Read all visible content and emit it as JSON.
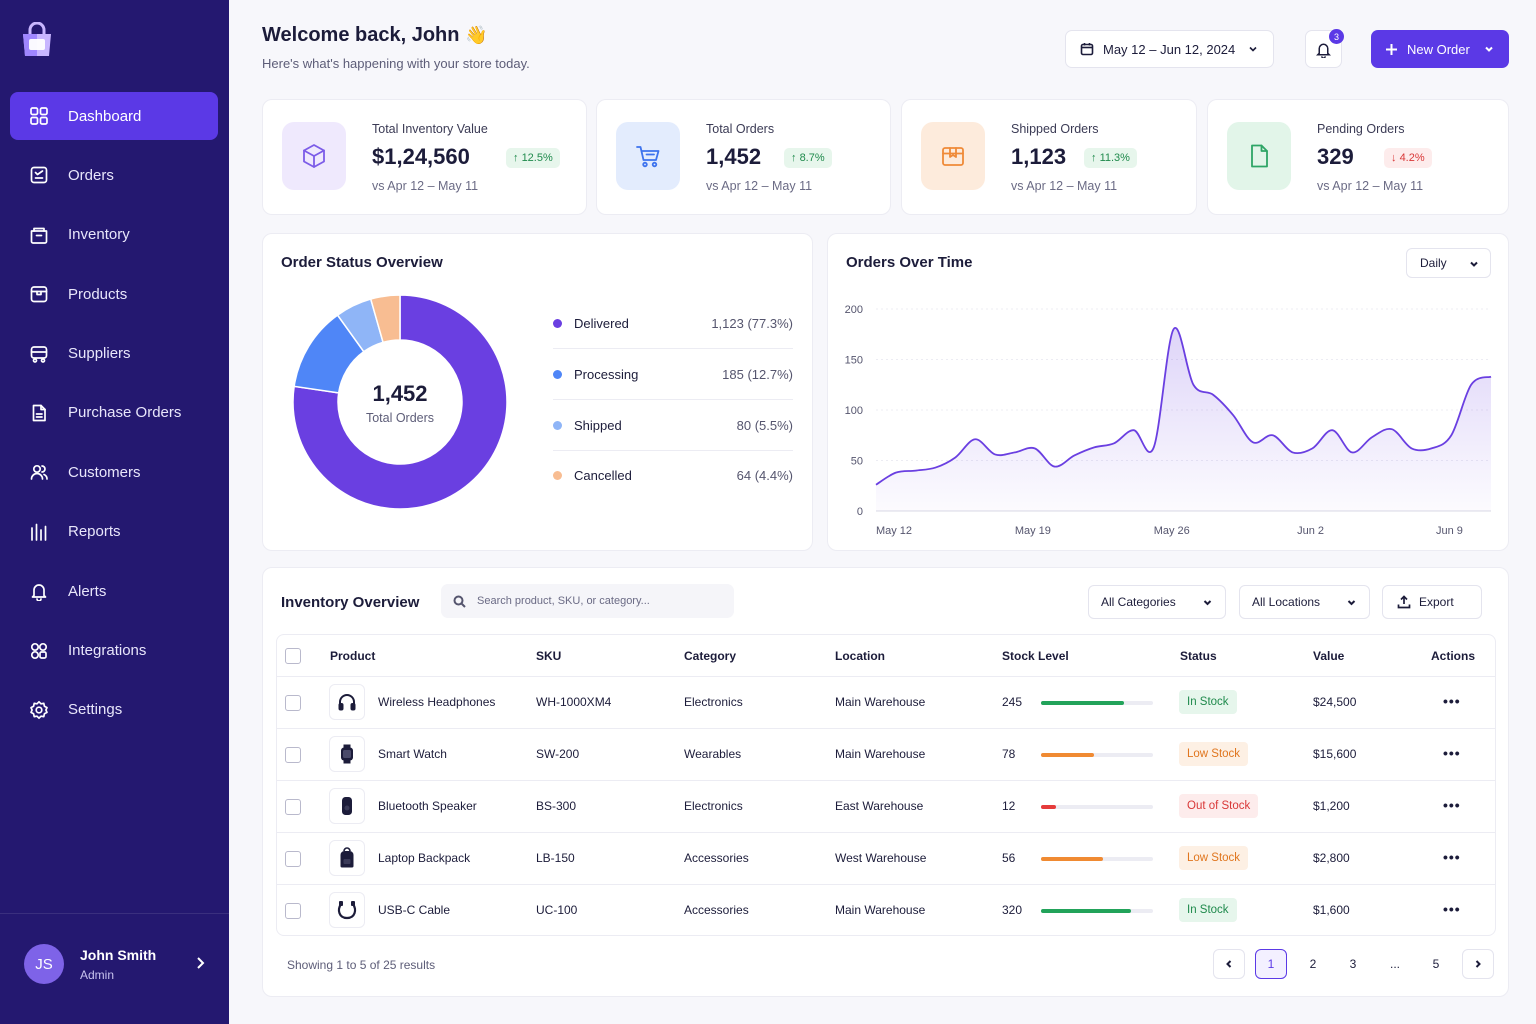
{
  "sidebar": {
    "items": [
      {
        "label": "Dashboard",
        "icon": "grid-icon"
      },
      {
        "label": "Orders",
        "icon": "orders-icon"
      },
      {
        "label": "Inventory",
        "icon": "inventory-icon"
      },
      {
        "label": "Products",
        "icon": "box-icon"
      },
      {
        "label": "Suppliers",
        "icon": "truck-icon"
      },
      {
        "label": "Purchase Orders",
        "icon": "document-icon"
      },
      {
        "label": "Customers",
        "icon": "users-icon"
      },
      {
        "label": "Reports",
        "icon": "bar-chart-icon"
      },
      {
        "label": "Alerts",
        "icon": "bell-icon"
      },
      {
        "label": "Integrations",
        "icon": "integrations-icon"
      },
      {
        "label": "Settings",
        "icon": "gear-icon"
      }
    ],
    "user": {
      "initials": "JS",
      "name": "John Smith",
      "role": "Admin"
    }
  },
  "header": {
    "title": "Welcome back, John",
    "wave": "👋",
    "subtitle": "Here's what's happening with your store today.",
    "date_range": "May 12 – Jun 12, 2024",
    "notifications": "3",
    "new_order": "New Order"
  },
  "stats": [
    {
      "label": "Total Inventory Value",
      "value": "$1,24,560",
      "delta": "12.5%",
      "direction": "up",
      "compare": "vs Apr 12 – May 11",
      "icon": "cube-icon",
      "bg": "#efe9fd",
      "color": "#7c5ce8"
    },
    {
      "label": "Total Orders",
      "value": "1,452",
      "delta": "8.7%",
      "direction": "up",
      "compare": "vs Apr 12 – May 11",
      "icon": "cart-icon",
      "bg": "#e3ecfd",
      "color": "#3d73ee"
    },
    {
      "label": "Shipped Orders",
      "value": "1,123",
      "delta": "11.3%",
      "direction": "up",
      "compare": "vs Apr 12 – May 11",
      "icon": "package-icon",
      "bg": "#fdebdc",
      "color": "#ef8a38"
    },
    {
      "label": "Pending Orders",
      "value": "329",
      "delta": "4.2%",
      "direction": "down",
      "compare": "vs Apr 12 – May 11",
      "icon": "file-icon",
      "bg": "#e2f5e9",
      "color": "#2ea566"
    }
  ],
  "order_status": {
    "title": "Order Status Overview",
    "center_value": "1,452",
    "center_label": "Total Orders",
    "legend": [
      {
        "label": "Delivered",
        "value": "1,123 (77.3%)",
        "color": "#6a3fe1"
      },
      {
        "label": "Processing",
        "value": "185 (12.7%)",
        "color": "#4f86f7"
      },
      {
        "label": "Shipped",
        "value": "80 (5.5%)",
        "color": "#8fb5f7"
      },
      {
        "label": "Cancelled",
        "value": "64 (4.4%)",
        "color": "#f8bd92"
      }
    ]
  },
  "orders_over_time": {
    "title": "Orders Over Time",
    "period": "Daily"
  },
  "chart_data": [
    {
      "type": "pie",
      "title": "Order Status Overview",
      "categories": [
        "Delivered",
        "Processing",
        "Shipped",
        "Cancelled"
      ],
      "values": [
        1123,
        185,
        80,
        64
      ]
    },
    {
      "type": "area",
      "title": "Orders Over Time",
      "ylim": [
        0,
        200
      ],
      "yticks": [
        0,
        50,
        100,
        150,
        200
      ],
      "xtick_labels": [
        "May 12",
        "May 19",
        "May 26",
        "Jun 2",
        "Jun 9"
      ],
      "x": [
        "May 12",
        "May 13",
        "May 14",
        "May 15",
        "May 16",
        "May 17",
        "May 18",
        "May 19",
        "May 20",
        "May 21",
        "May 22",
        "May 23",
        "May 24",
        "May 25",
        "May 26",
        "May 27",
        "May 28",
        "May 29",
        "May 30",
        "May 31",
        "Jun 1",
        "Jun 2",
        "Jun 3",
        "Jun 4",
        "Jun 5",
        "Jun 6",
        "Jun 7",
        "Jun 8",
        "Jun 9",
        "Jun 10",
        "Jun 11",
        "Jun 12"
      ],
      "values": [
        26,
        38,
        40,
        43,
        53,
        71,
        56,
        58,
        62,
        44,
        55,
        63,
        67,
        80,
        63,
        180,
        125,
        115,
        95,
        68,
        75,
        58,
        62,
        80,
        58,
        73,
        81,
        62,
        62,
        75,
        125,
        133
      ]
    }
  ],
  "inventory": {
    "title": "Inventory Overview",
    "search_placeholder": "Search product, SKU, or category...",
    "filter_categories": "All Categories",
    "filter_locations": "All Locations",
    "export": "Export",
    "columns": [
      "Product",
      "SKU",
      "Category",
      "Location",
      "Stock Level",
      "Status",
      "Value",
      "Actions"
    ],
    "rows": [
      {
        "product": "Wireless Headphones",
        "sku": "WH-1000XM4",
        "category": "Electronics",
        "location": "Main Warehouse",
        "stock": "245",
        "level": 0.74,
        "status": "In Stock",
        "status_kind": "in",
        "value": "$24,500",
        "icon": "headphones-icon"
      },
      {
        "product": "Smart Watch",
        "sku": "SW-200",
        "category": "Wearables",
        "location": "Main Warehouse",
        "stock": "78",
        "level": 0.47,
        "status": "Low Stock",
        "status_kind": "low",
        "value": "$15,600",
        "icon": "watch-icon"
      },
      {
        "product": "Bluetooth Speaker",
        "sku": "BS-300",
        "category": "Electronics",
        "location": "East Warehouse",
        "stock": "12",
        "level": 0.13,
        "status": "Out of Stock",
        "status_kind": "out",
        "value": "$1,200",
        "icon": "speaker-icon"
      },
      {
        "product": "Laptop Backpack",
        "sku": "LB-150",
        "category": "Accessories",
        "location": "West Warehouse",
        "stock": "56",
        "level": 0.55,
        "status": "Low Stock",
        "status_kind": "low",
        "value": "$2,800",
        "icon": "backpack-icon"
      },
      {
        "product": "USB-C Cable",
        "sku": "UC-100",
        "category": "Accessories",
        "location": "Main Warehouse",
        "stock": "320",
        "level": 0.8,
        "status": "In Stock",
        "status_kind": "in",
        "value": "$1,600",
        "icon": "cable-icon"
      }
    ],
    "showing": "Showing 1 to 5 of 25 results",
    "pages": [
      "1",
      "2",
      "3",
      "...",
      "5"
    ]
  }
}
